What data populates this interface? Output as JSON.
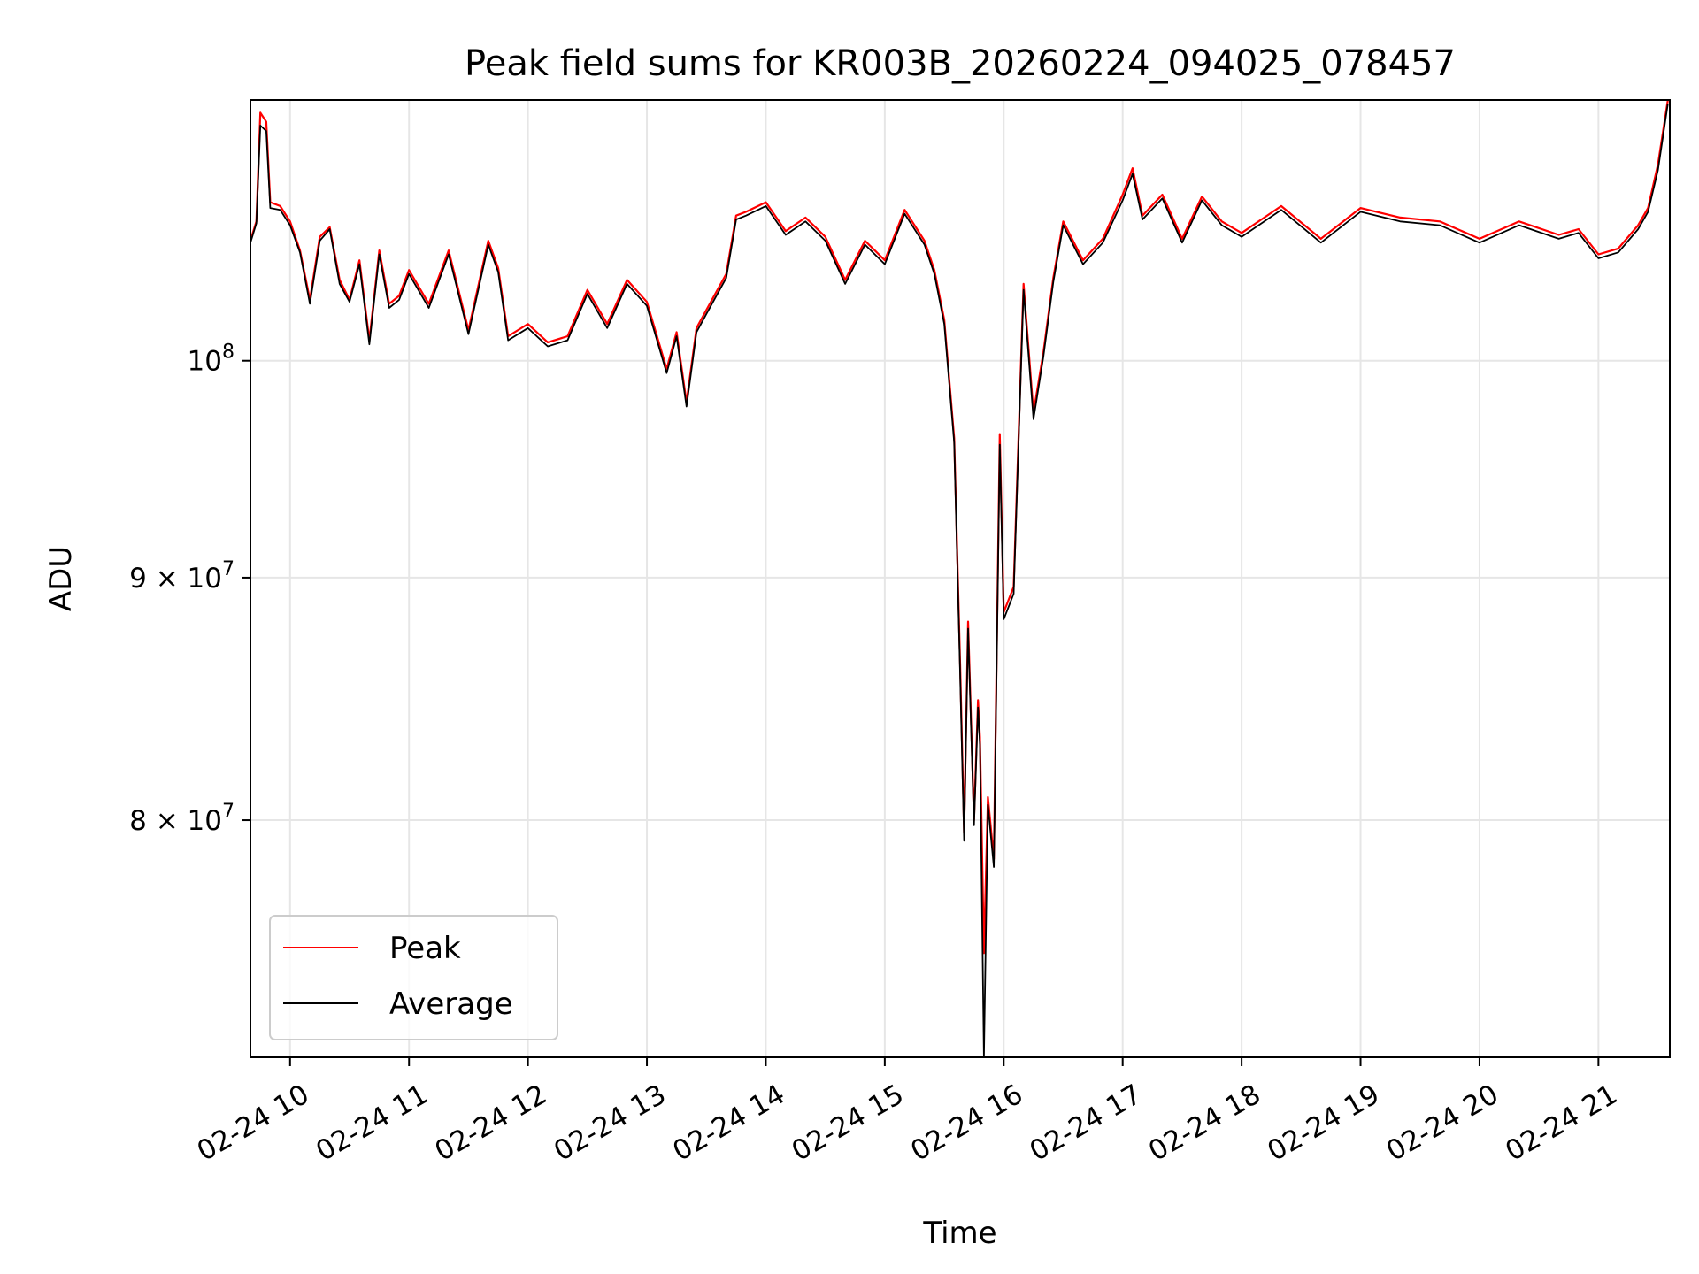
{
  "chart_data": {
    "type": "line",
    "title": "Peak field sums for KR003B_20260224_094025_078457",
    "xlabel": "Time",
    "ylabel": "ADU",
    "yscale": "log",
    "grid": true,
    "legend_position": "lower-left",
    "xlim": [
      "2026-02-24 09:40",
      "2026-02-24 21:36"
    ],
    "ylim": [
      71300000,
      113500000
    ],
    "x_ticks": [
      "02-24 10",
      "02-24 11",
      "02-24 12",
      "02-24 13",
      "02-24 14",
      "02-24 15",
      "02-24 16",
      "02-24 17",
      "02-24 18",
      "02-24 19",
      "02-24 20",
      "02-24 21"
    ],
    "y_ticks": [
      {
        "value": 80000000,
        "mantissa": "8",
        "base": "10",
        "exponent": "7"
      },
      {
        "value": 90000000,
        "mantissa": "9",
        "base": "10",
        "exponent": "7"
      },
      {
        "value": 100000000,
        "mantissa": "",
        "base": "10",
        "exponent": "8"
      }
    ],
    "x": [
      "2026-02-24 09:40",
      "2026-02-24 09:43",
      "2026-02-24 09:45",
      "2026-02-24 09:48",
      "2026-02-24 09:50",
      "2026-02-24 09:55",
      "2026-02-24 10:00",
      "2026-02-24 10:05",
      "2026-02-24 10:10",
      "2026-02-24 10:15",
      "2026-02-24 10:20",
      "2026-02-24 10:25",
      "2026-02-24 10:30",
      "2026-02-24 10:35",
      "2026-02-24 10:40",
      "2026-02-24 10:45",
      "2026-02-24 10:50",
      "2026-02-24 10:55",
      "2026-02-24 11:00",
      "2026-02-24 11:10",
      "2026-02-24 11:20",
      "2026-02-24 11:30",
      "2026-02-24 11:40",
      "2026-02-24 11:45",
      "2026-02-24 11:50",
      "2026-02-24 12:00",
      "2026-02-24 12:10",
      "2026-02-24 12:20",
      "2026-02-24 12:30",
      "2026-02-24 12:40",
      "2026-02-24 12:50",
      "2026-02-24 13:00",
      "2026-02-24 13:10",
      "2026-02-24 13:15",
      "2026-02-24 13:20",
      "2026-02-24 13:25",
      "2026-02-24 13:30",
      "2026-02-24 13:40",
      "2026-02-24 13:45",
      "2026-02-24 13:50",
      "2026-02-24 14:00",
      "2026-02-24 14:10",
      "2026-02-24 14:20",
      "2026-02-24 14:30",
      "2026-02-24 14:40",
      "2026-02-24 14:50",
      "2026-02-24 15:00",
      "2026-02-24 15:10",
      "2026-02-24 15:20",
      "2026-02-24 15:25",
      "2026-02-24 15:30",
      "2026-02-24 15:35",
      "2026-02-24 15:38",
      "2026-02-24 15:40",
      "2026-02-24 15:42",
      "2026-02-24 15:45",
      "2026-02-24 15:47",
      "2026-02-24 15:48",
      "2026-02-24 15:50",
      "2026-02-24 15:52",
      "2026-02-24 15:55",
      "2026-02-24 15:58",
      "2026-02-24 16:00",
      "2026-02-24 16:05",
      "2026-02-24 16:10",
      "2026-02-24 16:15",
      "2026-02-24 16:20",
      "2026-02-24 16:25",
      "2026-02-24 16:30",
      "2026-02-24 16:40",
      "2026-02-24 16:50",
      "2026-02-24 17:00",
      "2026-02-24 17:05",
      "2026-02-24 17:10",
      "2026-02-24 17:20",
      "2026-02-24 17:30",
      "2026-02-24 17:40",
      "2026-02-24 17:50",
      "2026-02-24 18:00",
      "2026-02-24 18:20",
      "2026-02-24 18:40",
      "2026-02-24 19:00",
      "2026-02-24 19:20",
      "2026-02-24 19:40",
      "2026-02-24 20:00",
      "2026-02-24 20:20",
      "2026-02-24 20:40",
      "2026-02-24 20:50",
      "2026-02-24 21:00",
      "2026-02-24 21:10",
      "2026-02-24 21:20",
      "2026-02-24 21:25",
      "2026-02-24 21:30",
      "2026-02-24 21:35"
    ],
    "series": [
      {
        "name": "Peak",
        "color": "#ff0000",
        "values": [
          106000000,
          107000000,
          112800000,
          112300000,
          108000000,
          107800000,
          107000000,
          105500000,
          103000000,
          106200000,
          106700000,
          104000000,
          103000000,
          105000000,
          101000000,
          105500000,
          102800000,
          103200000,
          104500000,
          102800000,
          105500000,
          101500000,
          106000000,
          104600000,
          101200000,
          101800000,
          100900000,
          101200000,
          103500000,
          101800000,
          104000000,
          102900000,
          99600000,
          101400000,
          98000000,
          101600000,
          102500000,
          104300000,
          107300000,
          107500000,
          108000000,
          106500000,
          107200000,
          106200000,
          104000000,
          106000000,
          105000000,
          107600000,
          106000000,
          104500000,
          102000000,
          96300000,
          86300000,
          79500000,
          88100000,
          80000000,
          84800000,
          83300000,
          75000000,
          80900000,
          78500000,
          96500000,
          88500000,
          89600000,
          103800000,
          97500000,
          100400000,
          104100000,
          107000000,
          105000000,
          106100000,
          108400000,
          109800000,
          107300000,
          108400000,
          106100000,
          108300000,
          107000000,
          106400000,
          107800000,
          106100000,
          107700000,
          107200000,
          107000000,
          106100000,
          107000000,
          106300000,
          106600000,
          105300000,
          105600000,
          106800000,
          107700000,
          110000000,
          113500000
        ]
      },
      {
        "name": "Average",
        "color": "#000000",
        "values": [
          105900000,
          106900000,
          112100000,
          111800000,
          107700000,
          107600000,
          106800000,
          105400000,
          102800000,
          106000000,
          106600000,
          103800000,
          102900000,
          104800000,
          100800000,
          105300000,
          102600000,
          103000000,
          104300000,
          102600000,
          105300000,
          101300000,
          105800000,
          104400000,
          101000000,
          101600000,
          100700000,
          101000000,
          103300000,
          101600000,
          103800000,
          102700000,
          99400000,
          101200000,
          97800000,
          101400000,
          102300000,
          104100000,
          107100000,
          107300000,
          107800000,
          106300000,
          107000000,
          106000000,
          103800000,
          105800000,
          104800000,
          107400000,
          105800000,
          104300000,
          101800000,
          96100000,
          85900000,
          79200000,
          87800000,
          79800000,
          84500000,
          83000000,
          71300000,
          80600000,
          78200000,
          96000000,
          88200000,
          89300000,
          103500000,
          97200000,
          100200000,
          103900000,
          106800000,
          104800000,
          105900000,
          108100000,
          109500000,
          107100000,
          108200000,
          105900000,
          108100000,
          106800000,
          106200000,
          107600000,
          105900000,
          107500000,
          107000000,
          106800000,
          105900000,
          106800000,
          106100000,
          106400000,
          105100000,
          105400000,
          106600000,
          107500000,
          109700000,
          113300000
        ]
      }
    ]
  }
}
